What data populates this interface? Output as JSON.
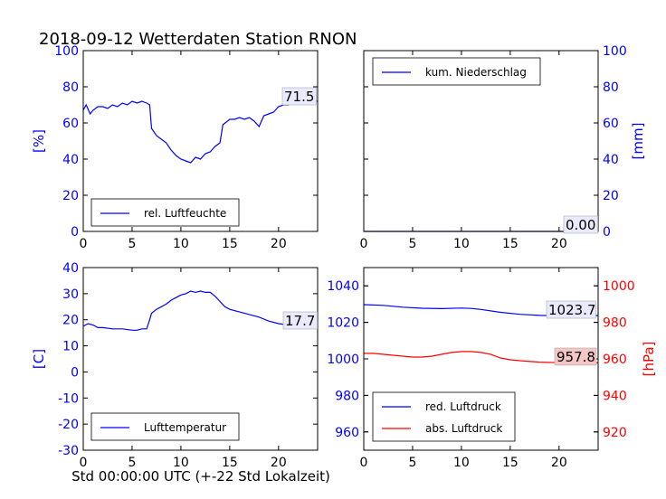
{
  "figure_title": "2018-09-12 Wetterdaten Station RNON",
  "x_label": "Std 00:00:00 UTC (+-22 Std Lokalzeit)",
  "colors": {
    "blue": "#0000ff",
    "red": "#ff0000",
    "black": "#000000"
  },
  "chart_data": [
    {
      "type": "line",
      "panel": "humidity",
      "xlim": [
        0,
        24
      ],
      "ylim": [
        0,
        100
      ],
      "ylabel": "[%]",
      "yticks": [
        0,
        20,
        40,
        60,
        80,
        100
      ],
      "xticks": [
        0,
        5,
        10,
        15,
        20
      ],
      "legend": "bottom-left",
      "last_value_label": "71.5",
      "series": [
        {
          "name": "rel. Luftfeuchte",
          "color": "#0000ff",
          "x": [
            0,
            0.3,
            0.7,
            1,
            1.5,
            2,
            2.5,
            3,
            3.5,
            4,
            4.5,
            5,
            5.5,
            6,
            6.5,
            6.8,
            7,
            7.5,
            8,
            8.5,
            9,
            9.5,
            10,
            10.5,
            11,
            11.5,
            12,
            12.5,
            13,
            13.5,
            14,
            14.3,
            15,
            15.5,
            16,
            16.5,
            17,
            17.5,
            18,
            18.5,
            19,
            19.5,
            20,
            20.5,
            21,
            21.5,
            22,
            22.5,
            23,
            23.5,
            24
          ],
          "y": [
            67,
            70,
            65,
            67,
            69,
            69,
            68,
            70,
            69,
            71,
            70,
            72,
            71,
            72,
            71,
            70,
            57,
            53,
            51,
            49,
            45,
            42,
            40,
            39,
            38,
            41,
            40,
            43,
            44,
            47,
            49,
            59,
            62,
            62,
            63,
            62,
            63,
            61,
            58,
            64,
            65,
            66,
            69,
            70,
            70,
            71,
            72,
            71,
            73,
            72,
            72
          ]
        }
      ]
    },
    {
      "type": "line",
      "panel": "precipitation",
      "xlim": [
        0,
        24
      ],
      "ylim": [
        0,
        100
      ],
      "ylabel": "[mm]",
      "yticks": [
        0,
        20,
        40,
        60,
        80,
        100
      ],
      "xticks": [
        0,
        5,
        10,
        15,
        20
      ],
      "legend": "top-left",
      "last_value_label": "0.00",
      "series": [
        {
          "name": "kum. Niederschlag",
          "color": "#0000ff",
          "x": [
            0,
            24
          ],
          "y": [
            0,
            0
          ]
        }
      ]
    },
    {
      "type": "line",
      "panel": "temperature",
      "xlim": [
        0,
        24
      ],
      "ylim": [
        -30,
        40
      ],
      "ylabel": "[C]",
      "yticks": [
        -30,
        -20,
        -10,
        0,
        10,
        20,
        30,
        40
      ],
      "xticks": [
        0,
        5,
        10,
        15,
        20
      ],
      "legend": "bottom-left",
      "last_value_label": "17.7",
      "series": [
        {
          "name": "Lufttemperatur",
          "color": "#0000ff",
          "x": [
            0,
            0.5,
            1,
            1.5,
            2,
            3,
            4,
            5,
            5.5,
            6,
            6.5,
            6.8,
            7,
            7.5,
            8,
            8.5,
            9,
            9.5,
            10,
            10.5,
            11,
            11.5,
            12,
            12.5,
            13,
            13.5,
            14,
            14.5,
            15,
            16,
            17,
            18,
            19,
            20,
            21,
            22,
            23,
            24
          ],
          "y": [
            17.5,
            18.5,
            18,
            17,
            17,
            16.5,
            16.5,
            16,
            16,
            16.5,
            16.5,
            20,
            22.5,
            24,
            25,
            26,
            27.5,
            28.5,
            29.5,
            30,
            31,
            30.5,
            31,
            30.5,
            30.5,
            29,
            27,
            25,
            24,
            23,
            22,
            21,
            19.5,
            18.5,
            18,
            18,
            17.8,
            17.7
          ]
        }
      ]
    },
    {
      "type": "line",
      "panel": "pressure",
      "xlim": [
        0,
        24
      ],
      "ylim": [
        950,
        1050
      ],
      "ylim_right": [
        910,
        1010
      ],
      "ylabel_right": "[hPa]",
      "yticks": [
        960,
        980,
        1000,
        1020,
        1040
      ],
      "yticks_right": [
        920,
        940,
        960,
        980,
        1000
      ],
      "xticks": [
        0,
        5,
        10,
        15,
        20
      ],
      "legend": "bottom-left",
      "last_value_labels": [
        "1023.7",
        "957.8"
      ],
      "series": [
        {
          "name": "red. Luftdruck",
          "color": "#0000ff",
          "axis": "left",
          "x": [
            0,
            2,
            4,
            6,
            8,
            10,
            11,
            12,
            14,
            16,
            18,
            20,
            22,
            24
          ],
          "y": [
            1029.7,
            1029.3,
            1028.3,
            1027.7,
            1027.5,
            1027.8,
            1027.6,
            1027.1,
            1025.5,
            1024.4,
            1023.8,
            1023.6,
            1023.7,
            1023.7
          ]
        }
      ],
      "series_right": [
        {
          "name": "abs. Luftdruck",
          "color": "#ff0000",
          "axis": "right",
          "x": [
            0,
            1,
            3,
            5,
            6,
            7,
            8,
            9,
            10,
            11,
            12,
            13,
            14,
            15,
            16,
            18,
            20,
            22,
            23,
            24
          ],
          "y": [
            963,
            963,
            962,
            961,
            961,
            961.5,
            962.5,
            963.5,
            964,
            964,
            963.5,
            962.5,
            960.5,
            959.5,
            959,
            958.2,
            957.9,
            957.8,
            957.8,
            957.8
          ]
        }
      ]
    }
  ]
}
